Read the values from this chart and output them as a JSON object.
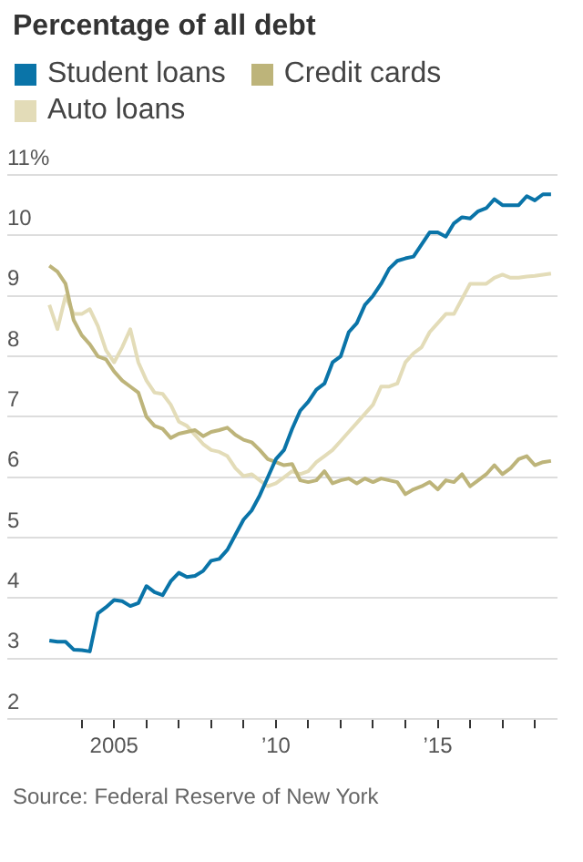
{
  "chart_data": {
    "type": "line",
    "title": "Percentage of all debt",
    "legend": "top left",
    "grid": "y",
    "marker": "none",
    "line_style": "solid",
    "x": [
      2003,
      2003.25,
      2003.5,
      2003.75,
      2004,
      2004.25,
      2004.5,
      2004.75,
      2005,
      2005.25,
      2005.5,
      2005.75,
      2006,
      2006.25,
      2006.5,
      2006.75,
      2007,
      2007.25,
      2007.5,
      2007.75,
      2008,
      2008.25,
      2008.5,
      2008.75,
      2009,
      2009.25,
      2009.5,
      2009.75,
      2010,
      2010.25,
      2010.5,
      2010.75,
      2011,
      2011.25,
      2011.5,
      2011.75,
      2012,
      2012.25,
      2012.5,
      2012.75,
      2013,
      2013.25,
      2013.5,
      2013.75,
      2014,
      2014.25,
      2014.5,
      2014.75,
      2015,
      2015.25,
      2015.5,
      2015.75,
      2016,
      2016.25,
      2016.5,
      2016.75,
      2017,
      2017.25,
      2017.5,
      2017.75,
      2018,
      2018.25,
      2018.5
    ],
    "series": [
      {
        "name": "Student loans",
        "color": "#0a74a8",
        "values": [
          3.3,
          3.28,
          3.28,
          3.15,
          3.14,
          3.12,
          3.75,
          3.85,
          3.97,
          3.95,
          3.87,
          3.92,
          4.2,
          4.1,
          4.05,
          4.28,
          4.42,
          4.35,
          4.37,
          4.45,
          4.62,
          4.65,
          4.8,
          5.05,
          5.3,
          5.45,
          5.7,
          6.0,
          6.3,
          6.45,
          6.8,
          7.1,
          7.25,
          7.45,
          7.55,
          7.9,
          8.0,
          8.4,
          8.55,
          8.85,
          9.0,
          9.2,
          9.45,
          9.58,
          9.62,
          9.65,
          9.85,
          10.05,
          10.05,
          9.98,
          10.2,
          10.3,
          10.28,
          10.4,
          10.45,
          10.6,
          10.5,
          10.5,
          10.5,
          10.65,
          10.58,
          10.68,
          10.68
        ]
      },
      {
        "name": "Credit cards",
        "color": "#bdb47a",
        "values": [
          9.5,
          9.4,
          9.2,
          8.6,
          8.35,
          8.2,
          8.0,
          7.95,
          7.75,
          7.6,
          7.5,
          7.4,
          7.0,
          6.85,
          6.8,
          6.65,
          6.72,
          6.75,
          6.78,
          6.68,
          6.75,
          6.78,
          6.82,
          6.7,
          6.62,
          6.58,
          6.45,
          6.3,
          6.25,
          6.2,
          6.22,
          5.95,
          5.92,
          5.95,
          6.1,
          5.9,
          5.95,
          5.98,
          5.9,
          5.98,
          5.92,
          5.98,
          5.95,
          5.92,
          5.72,
          5.8,
          5.85,
          5.92,
          5.8,
          5.95,
          5.92,
          6.05,
          5.85,
          5.95,
          6.05,
          6.2,
          6.05,
          6.15,
          6.3,
          6.35,
          6.2,
          6.25,
          6.27
        ]
      },
      {
        "name": "Auto loans",
        "color": "#e3dcb8",
        "values": [
          8.85,
          8.45,
          9.0,
          8.7,
          8.7,
          8.78,
          8.5,
          8.1,
          7.9,
          8.15,
          8.45,
          7.9,
          7.6,
          7.4,
          7.38,
          7.2,
          6.92,
          6.85,
          6.7,
          6.55,
          6.45,
          6.42,
          6.35,
          6.15,
          6.02,
          6.05,
          5.95,
          5.85,
          5.9,
          6.0,
          6.1,
          6.05,
          6.1,
          6.25,
          6.35,
          6.45,
          6.6,
          6.75,
          6.9,
          7.05,
          7.2,
          7.5,
          7.5,
          7.55,
          7.9,
          8.05,
          8.15,
          8.4,
          8.55,
          8.7,
          8.7,
          8.95,
          9.2,
          9.2,
          9.2,
          9.3,
          9.35,
          9.3,
          9.3,
          9.32,
          9.33,
          9.35,
          9.37
        ]
      }
    ],
    "xlim": [
      2001.7,
      2018.7
    ],
    "xticks": [
      {
        "value": 2004,
        "label": null
      },
      {
        "value": 2005,
        "label": "2005"
      },
      {
        "value": 2006,
        "label": null
      },
      {
        "value": 2007,
        "label": null
      },
      {
        "value": 2008,
        "label": null
      },
      {
        "value": 2009,
        "label": null
      },
      {
        "value": 2010,
        "label": "’10"
      },
      {
        "value": 2011,
        "label": null
      },
      {
        "value": 2012,
        "label": null
      },
      {
        "value": 2013,
        "label": null
      },
      {
        "value": 2014,
        "label": null
      },
      {
        "value": 2015,
        "label": "’15"
      },
      {
        "value": 2016,
        "label": null
      },
      {
        "value": 2017,
        "label": null
      },
      {
        "value": 2018,
        "label": null
      }
    ],
    "ylim": [
      2,
      11
    ],
    "yticks": [
      2,
      3,
      4,
      5,
      6,
      7,
      8,
      9,
      10,
      {
        "value": 11,
        "label": "11%"
      }
    ],
    "annotations": [
      "Source: Federal Reserve of New York"
    ]
  }
}
